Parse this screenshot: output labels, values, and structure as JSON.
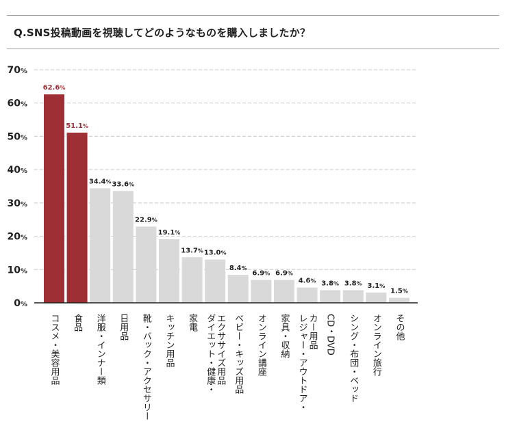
{
  "header": {
    "question": "Q.SNS投稿動画を視聴してどのようなものを購入しましたか？"
  },
  "colors": {
    "highlight": "#9e3035",
    "normal": "#d9d9d9",
    "grid": "#c8c8c8",
    "axis": "#1f1f1f",
    "text": "#1f1f1f"
  },
  "chart_data": {
    "type": "bar",
    "title": "Q.SNS投稿動画を視聴してどのようなものを購入しましたか？",
    "categories": [
      "コスメ・美容用品",
      "食品",
      "洋服・インナー類",
      "日用品",
      "靴・バック・アクセサリー",
      "キッチン用品",
      "家電",
      "ダイエット・健康・エクササイズ用品",
      "ベビー・キッズ用品",
      "オンライン講座",
      "家具・収納",
      "レジャー・アウトドア・カー用品",
      "CD・DVD",
      "シング・布団・ベッド",
      "オンライン旅行",
      "その他"
    ],
    "values": [
      62.6,
      51.1,
      34.4,
      33.6,
      22.9,
      19.1,
      13.7,
      13.0,
      8.4,
      6.9,
      6.9,
      4.6,
      3.8,
      3.8,
      3.1,
      1.5
    ],
    "value_labels": [
      "62.6",
      "51.1",
      "34.4",
      "33.6",
      "22.9",
      "19.1",
      "13.7",
      "13.0",
      "8.4",
      "6.9",
      "6.9",
      "4.6",
      "3.8",
      "3.8",
      "3.1",
      "1.5"
    ],
    "value_unit": "%",
    "highlighted": [
      true,
      true,
      false,
      false,
      false,
      false,
      false,
      false,
      false,
      false,
      false,
      false,
      false,
      false,
      false,
      false
    ],
    "category_lines": [
      [
        "コスメ・美容用品"
      ],
      [
        "食品"
      ],
      [
        "洋服・インナー類"
      ],
      [
        "日用品"
      ],
      [
        "靴・バック・アクセサリー"
      ],
      [
        "キッチン用品"
      ],
      [
        "家電"
      ],
      [
        "ダイエット・健康・",
        "エクササイズ用品"
      ],
      [
        "ベビー・キッズ用品"
      ],
      [
        "オンライン講座"
      ],
      [
        "家具・収納"
      ],
      [
        "レジャー・アウトドア・",
        "カー用品"
      ],
      [
        "CD・DVD"
      ],
      [
        "シング・布団・ベッド"
      ],
      [
        "オンライン旅行"
      ],
      [
        "その他"
      ]
    ],
    "y_ticks": [
      {
        "value": 0,
        "label": "0"
      },
      {
        "value": 10,
        "label": "10"
      },
      {
        "value": 20,
        "label": "20"
      },
      {
        "value": 30,
        "label": "30"
      },
      {
        "value": 40,
        "label": "40"
      },
      {
        "value": 50,
        "label": "50"
      },
      {
        "value": 60,
        "label": "60"
      },
      {
        "value": 70,
        "label": "70"
      }
    ],
    "y_tick_unit": "%",
    "ylim": [
      0,
      70
    ],
    "grid": "dashed horizontal",
    "legend": "none",
    "xlabel": "",
    "ylabel": ""
  }
}
